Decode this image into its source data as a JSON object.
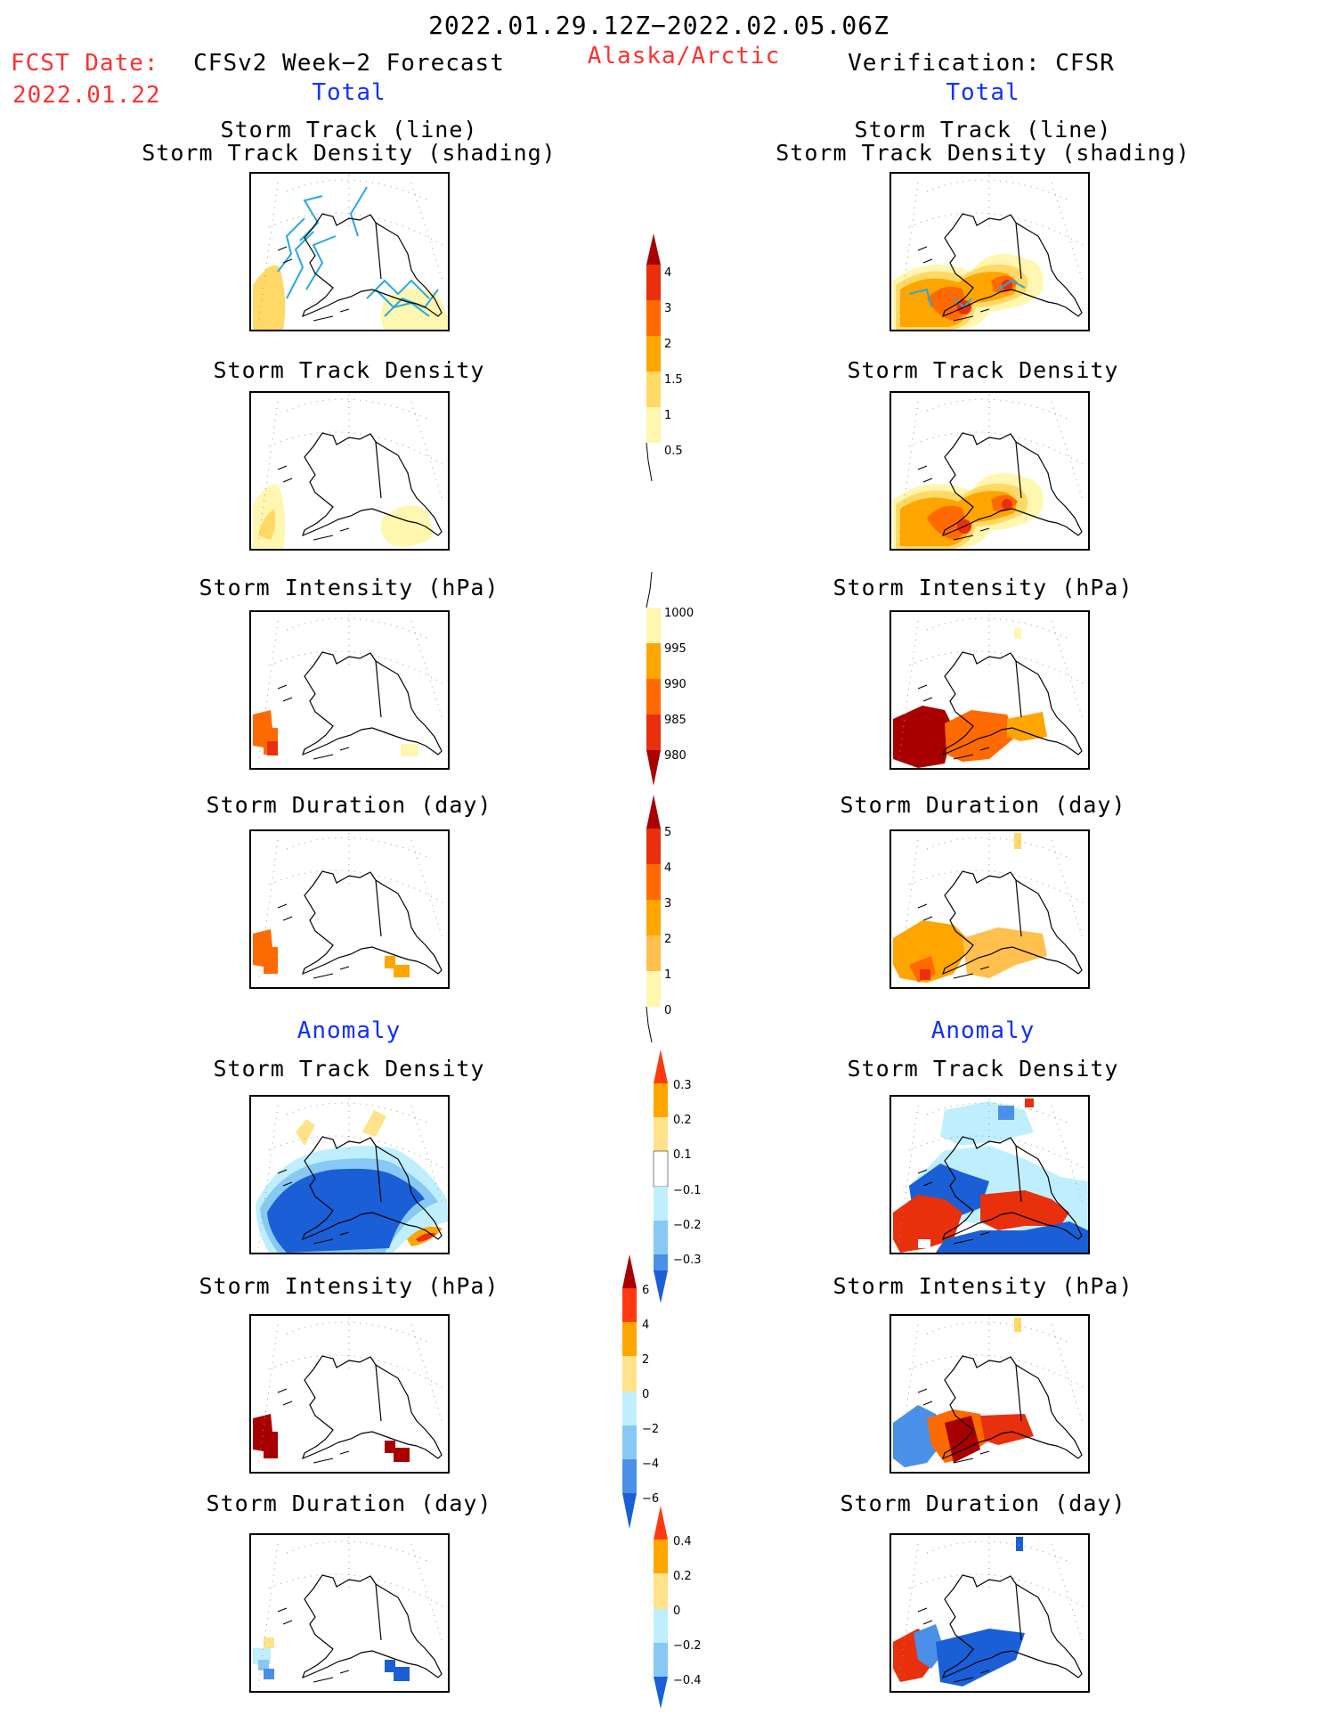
{
  "header": {
    "date_range": "2022.01.29.12Z−2022.02.05.06Z",
    "fcst_label": "FCST Date:",
    "fcst_date": "2022.01.22",
    "left_title": "CFSv2 Week−2 Forecast",
    "region": "Alaska/Arctic",
    "right_title": "Verification: CFSR"
  },
  "sections": {
    "total": "Total",
    "anomaly": "Anomaly"
  },
  "panel_titles": {
    "track_line": "Storm Track (line)",
    "track_shading": "Storm Track Density (shading)",
    "density": "Storm Track Density",
    "intensity": "Storm Intensity (hPa)",
    "duration": "Storm Duration (day)"
  },
  "colors": {
    "yellow_light": "#fff7b0",
    "yellow": "#ffd966",
    "orange": "#ffa500",
    "orange_dark": "#ff6a00",
    "red": "#e8300c",
    "dark_red": "#a80000",
    "blue_light": "#bfefff",
    "blue_mid": "#88c8f4",
    "blue": "#4a90e8",
    "blue_dark": "#1a5fd6",
    "track_line": "#2aa8e0",
    "header_red": "#ff3030",
    "header_blue": "#1030ff"
  },
  "colorbars": {
    "density_total": [
      "4",
      "3",
      "2",
      "1.5",
      "1",
      "0.5"
    ],
    "intensity_total": [
      "1000",
      "995",
      "990",
      "985",
      "980"
    ],
    "duration_total": [
      "5",
      "4",
      "3",
      "2",
      "1",
      "0"
    ],
    "density_anom": [
      "0.3",
      "0.2",
      "0.1",
      "−0.1",
      "−0.2",
      "−0.3"
    ],
    "intensity_anom": [
      "6",
      "4",
      "2",
      "0",
      "−2",
      "−4",
      "−6"
    ],
    "duration_anom": [
      "0.4",
      "0.2",
      "0",
      "−0.2",
      "−0.4"
    ]
  }
}
